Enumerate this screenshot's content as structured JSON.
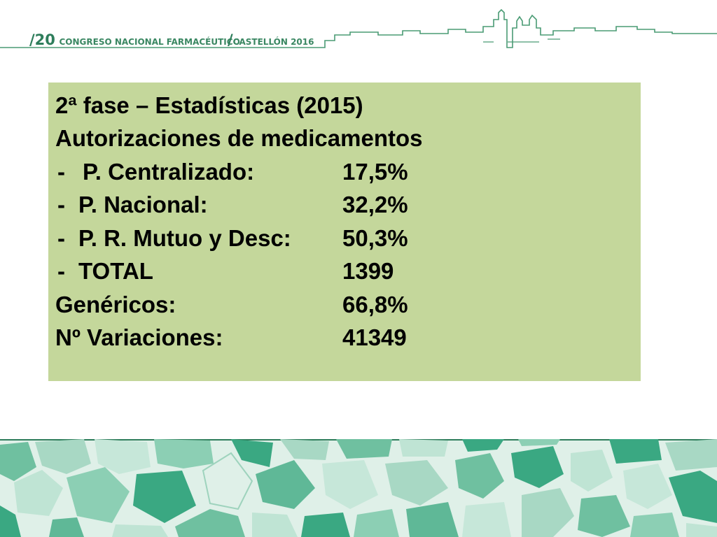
{
  "header": {
    "edition_slash": "/",
    "edition_number": "20",
    "congress_name": "CONGRESO NACIONAL FARMACÉUTICO",
    "city_slash": "/",
    "city_year": "CASTELLÓN 2016"
  },
  "slide": {
    "title": "2ª fase – Estadísticas (2015)",
    "subtitle": "Autorizaciones de medicamentos",
    "items": [
      {
        "dash": "-",
        "label": "P. Centralizado:",
        "value": "17,5%"
      },
      {
        "dash": "-",
        "label": "P. Nacional:",
        "value": "32,2%"
      },
      {
        "dash": "-",
        "label": "P. R. Mutuo y Desc:",
        "value": "50,3%"
      },
      {
        "dash": "-",
        "label": "TOTAL",
        "value": "1399"
      }
    ],
    "generics_label": "Genéricos:",
    "generics_value": "66,8%",
    "variations_label": "Nº Variaciones:",
    "variations_value": "41349"
  },
  "colors": {
    "box_background": "#c4d79b",
    "brand_green": "#2e7d5b",
    "mosaic_dark": "#3aa882",
    "mosaic_light": "#a8d8c4"
  },
  "icons": {
    "skyline": "castellon-skyline-icon",
    "footer": "mosaic-pattern"
  }
}
